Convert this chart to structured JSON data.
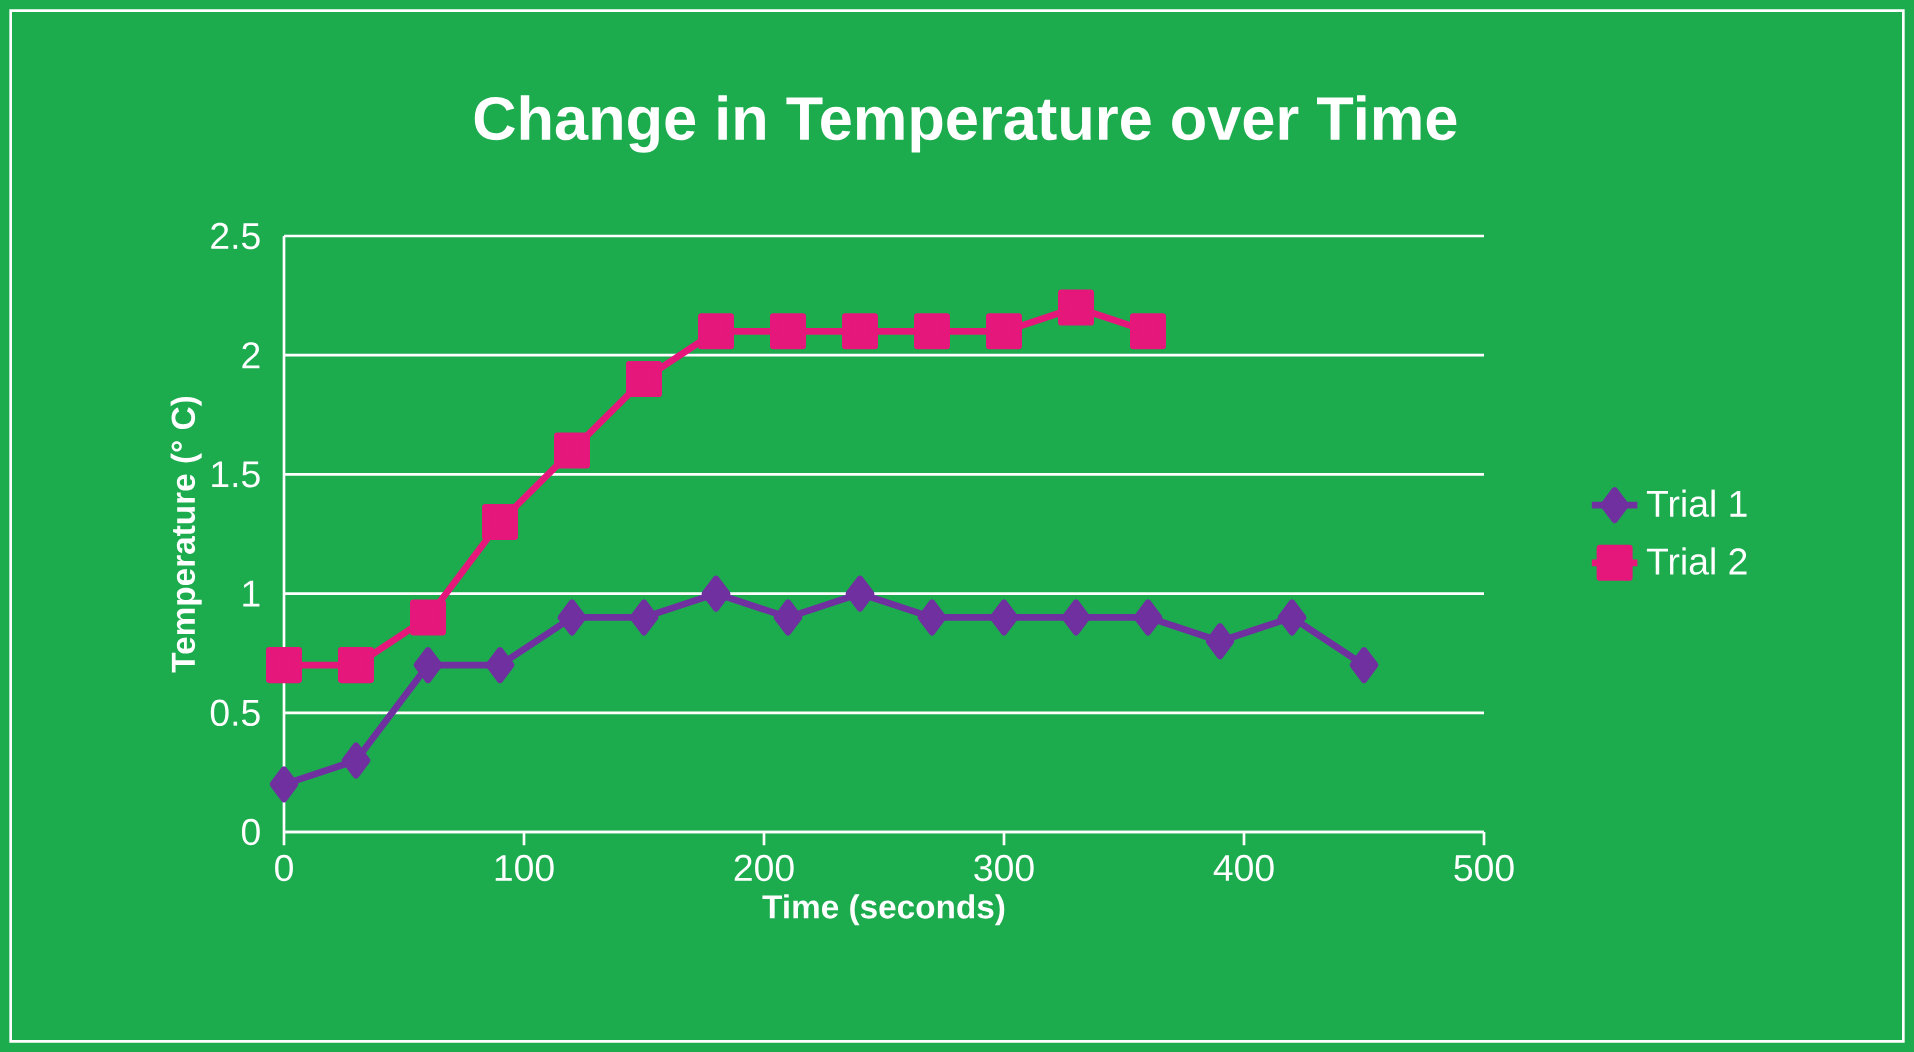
{
  "chart_data": {
    "type": "line",
    "title": "Change in Temperature over Time",
    "xlabel": "Time (seconds)",
    "ylabel": "Temperature (° C)",
    "series": [
      {
        "name": "Trial 1",
        "color": "#7030a0",
        "marker": "diamond",
        "x": [
          0,
          30,
          60,
          90,
          120,
          150,
          180,
          210,
          240,
          270,
          300,
          330,
          360,
          390,
          420,
          450
        ],
        "values": [
          0.2,
          0.3,
          0.7,
          0.7,
          0.9,
          0.9,
          1.0,
          0.9,
          1.0,
          0.9,
          0.9,
          0.9,
          0.9,
          0.8,
          0.9,
          0.7
        ]
      },
      {
        "name": "Trial 2",
        "color": "#e6177a",
        "marker": "square",
        "x": [
          0,
          30,
          60,
          90,
          120,
          150,
          180,
          210,
          240,
          270,
          300,
          330,
          360
        ],
        "values": [
          0.7,
          0.7,
          0.9,
          1.3,
          1.6,
          1.9,
          2.1,
          2.1,
          2.1,
          2.1,
          2.1,
          2.2,
          2.1
        ]
      }
    ],
    "xlim": [
      0,
      500
    ],
    "xticks": [
      0,
      100,
      200,
      300,
      400,
      500
    ],
    "ylim": [
      0,
      2.5
    ],
    "yticks": [
      0,
      0.5,
      1,
      1.5,
      2,
      2.5
    ],
    "grid": "y",
    "legend": "right",
    "line_style": "solid"
  }
}
